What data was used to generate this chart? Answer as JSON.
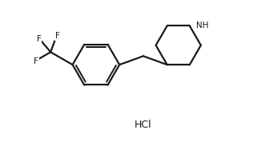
{
  "line_color": "#1a1a1a",
  "background_color": "#ffffff",
  "line_width": 1.6,
  "figsize": [
    3.36,
    1.88
  ],
  "dpi": 100,
  "hcl_label": "HCl",
  "nh_label": "NH",
  "font_size_label": 7.5,
  "font_size_hcl": 9.0,
  "bond_color": "#1a1a1a",
  "xlim": [
    0.0,
    10.5
  ],
  "ylim": [
    0.3,
    8.2
  ]
}
